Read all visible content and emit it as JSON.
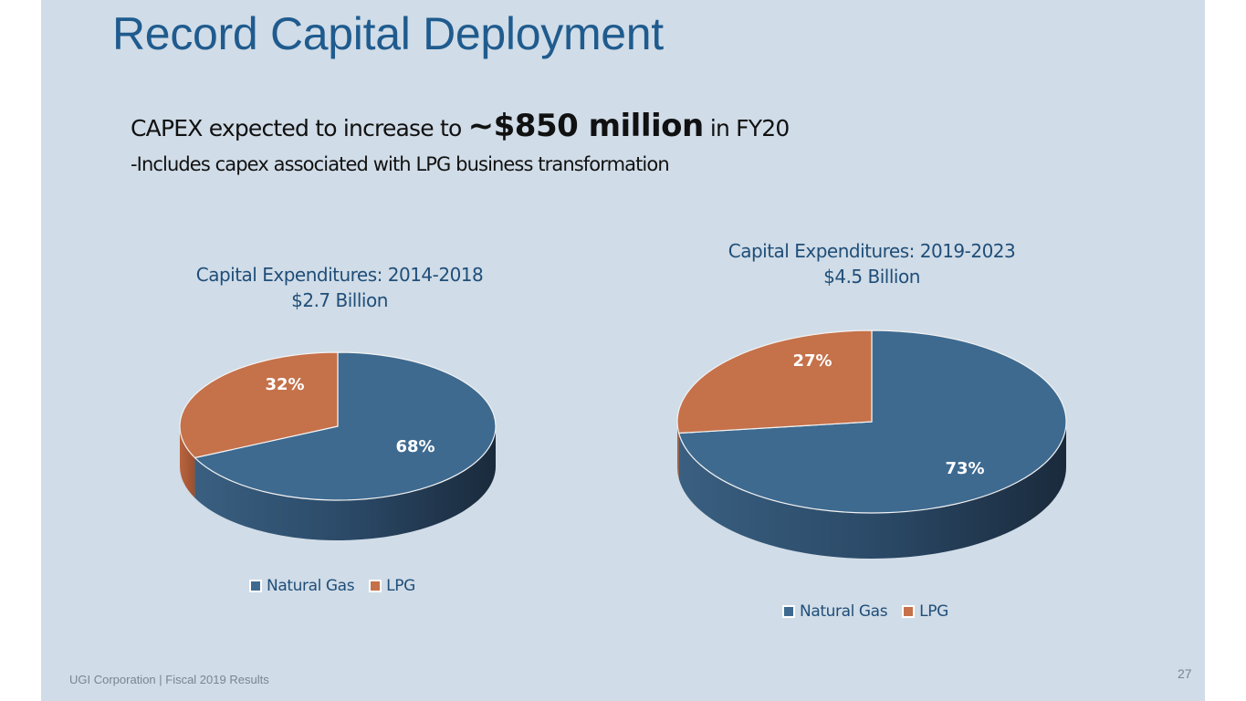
{
  "slide": {
    "title": "Record Capital Deployment",
    "subtitle_pre": "CAPEX expected to increase to ",
    "subtitle_emph": "~$850 million",
    "subtitle_post": " in FY20",
    "subtitle_line2": "-Includes capex associated with LPG business transformation",
    "footer": "UGI Corporation  |  Fiscal 2019 Results",
    "page_number": "27"
  },
  "colors": {
    "natural_gas": "#3e6a90",
    "lpg": "#c5714a",
    "title": "#1f5b8e"
  },
  "chart_data": [
    {
      "type": "pie",
      "title": "Capital Expenditures: 2014-2018",
      "subtitle": "$2.7 Billion",
      "categories": [
        "Natural Gas",
        "LPG"
      ],
      "values": [
        68,
        32
      ],
      "labels": [
        "68%",
        "32%"
      ],
      "legend": [
        "Natural Gas",
        "LPG"
      ],
      "legend_position": "bottom",
      "style": "3d"
    },
    {
      "type": "pie",
      "title": "Capital Expenditures: 2019-2023",
      "subtitle": "$4.5 Billion",
      "categories": [
        "Natural Gas",
        "LPG"
      ],
      "values": [
        73,
        27
      ],
      "labels": [
        "73%",
        "27%"
      ],
      "legend": [
        "Natural Gas",
        "LPG"
      ],
      "legend_position": "bottom",
      "style": "3d"
    }
  ]
}
